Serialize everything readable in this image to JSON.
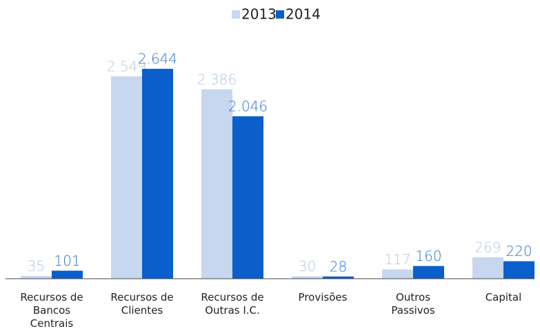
{
  "chart_data": {
    "type": "bar",
    "categories": [
      "Recursos de Bancos Centrais",
      "Recursos de Clientes",
      "Recursos de Outras I.C.",
      "Provisões",
      "Outros Passivos",
      "Capital"
    ],
    "series": [
      {
        "name": "2013",
        "color": "#c6d7ef",
        "label_color": "#b3c6e6",
        "values": [
          35,
          2549,
          2386,
          30,
          117,
          269
        ],
        "value_labels": [
          "35",
          "2.549",
          "2.386",
          "30",
          "117",
          "269"
        ]
      },
      {
        "name": "2014",
        "color": "#0a5fcc",
        "label_color": "#2a74d0",
        "values": [
          101,
          2644,
          2046,
          28,
          160,
          220
        ],
        "value_labels": [
          "101",
          "2.644",
          "2.046",
          "28",
          "160",
          "220"
        ]
      }
    ],
    "legend": "top"
  }
}
